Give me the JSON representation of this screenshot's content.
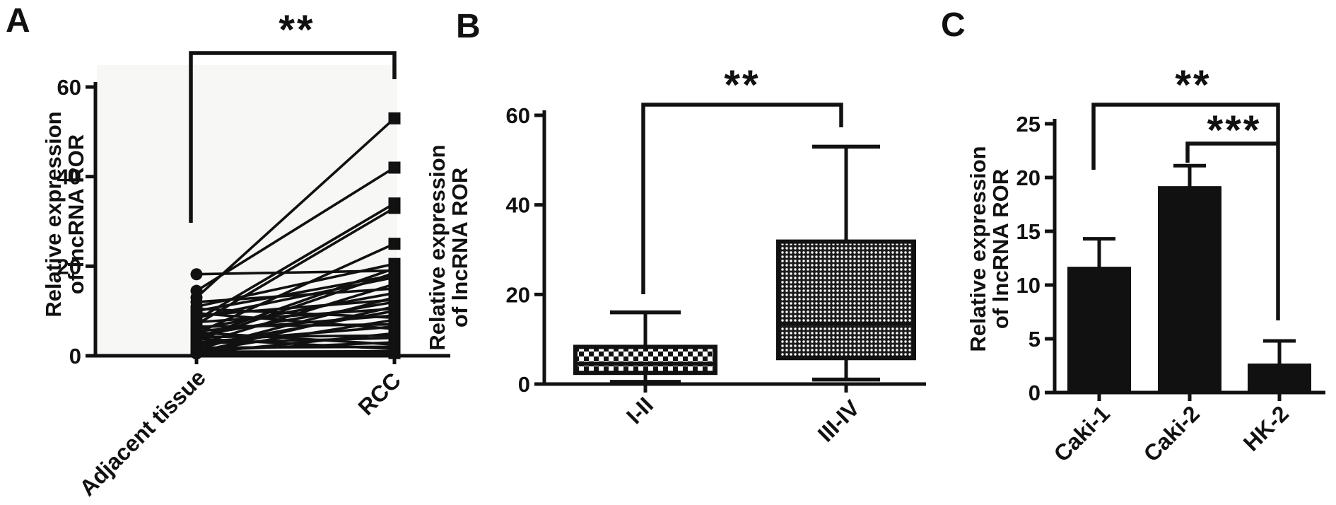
{
  "figure": {
    "background": "#ffffff",
    "ink": "#111111",
    "panel_a_plot_bg": "#f7f7f5"
  },
  "chart_data": [
    {
      "panel": "A",
      "type": "paired-line",
      "title": "",
      "ylabel_lines": [
        "Relative expression",
        "of lncRNA ROR"
      ],
      "categories": [
        "Adjacent tissue",
        "RCC"
      ],
      "marker_left": "circle",
      "marker_right": "square",
      "ylim": [
        0,
        60
      ],
      "yticks": [
        0,
        20,
        40,
        60
      ],
      "grid": false,
      "pairs": [
        [
          13,
          53
        ],
        [
          14.5,
          42
        ],
        [
          8,
          34
        ],
        [
          7,
          33
        ],
        [
          5,
          25
        ],
        [
          11,
          20.5
        ],
        [
          4,
          19.5
        ],
        [
          18.2,
          19
        ],
        [
          3.5,
          18.5
        ],
        [
          10,
          18
        ],
        [
          8.5,
          17.5
        ],
        [
          2.5,
          16
        ],
        [
          12,
          15
        ],
        [
          6,
          14
        ],
        [
          1.5,
          13
        ],
        [
          9,
          12.5
        ],
        [
          4.5,
          12
        ],
        [
          0.8,
          11
        ],
        [
          7.5,
          10.5
        ],
        [
          2.2,
          10
        ],
        [
          5.5,
          9
        ],
        [
          10.5,
          8.5
        ],
        [
          1,
          8
        ],
        [
          6.5,
          7
        ],
        [
          3,
          6.5
        ],
        [
          9.5,
          6
        ],
        [
          0.6,
          5
        ],
        [
          4.2,
          4.5
        ],
        [
          2.8,
          4
        ],
        [
          1.2,
          3
        ],
        [
          5.2,
          2.5
        ],
        [
          1.8,
          2
        ],
        [
          3.8,
          1.5
        ],
        [
          0.9,
          1
        ],
        [
          0.5,
          0.6
        ]
      ],
      "significance": {
        "label": "**",
        "between": [
          "Adjacent tissue",
          "RCC"
        ]
      }
    },
    {
      "panel": "B",
      "type": "box",
      "title": "",
      "ylabel_lines": [
        "Relative expression",
        "of lncRNA ROR"
      ],
      "categories": [
        "I-II",
        "III-IV"
      ],
      "ylim": [
        0,
        60
      ],
      "yticks": [
        0,
        20,
        40,
        60
      ],
      "grid": false,
      "boxes": [
        {
          "category": "I-II",
          "whisker_low": 0.5,
          "q1": 2.5,
          "median": 4.5,
          "q3": 8.3,
          "whisker_high": 16,
          "fill_pattern": "coarse-checker"
        },
        {
          "category": "III-IV",
          "whisker_low": 1,
          "q1": 5.8,
          "median": 13.4,
          "q3": 31.8,
          "whisker_high": 53,
          "fill_pattern": "fine-mesh"
        }
      ],
      "significance": {
        "label": "**",
        "between": [
          "I-II",
          "III-IV"
        ]
      }
    },
    {
      "panel": "C",
      "type": "bar",
      "title": "",
      "ylabel_lines": [
        "Relative expression",
        "of lncRNA ROR"
      ],
      "categories": [
        "Caki-1",
        "Caki-2",
        "HK-2"
      ],
      "values": [
        11.7,
        19.2,
        2.7
      ],
      "errors_plus": [
        2.6,
        1.9,
        2.1
      ],
      "ylim": [
        0,
        25
      ],
      "yticks": [
        0,
        5,
        10,
        15,
        20,
        25
      ],
      "grid": false,
      "bar_fill": "#111111",
      "significance": [
        {
          "label": "**",
          "between": [
            "Caki-1",
            "HK-2"
          ]
        },
        {
          "label": "***",
          "between": [
            "Caki-2",
            "HK-2"
          ]
        }
      ]
    }
  ]
}
